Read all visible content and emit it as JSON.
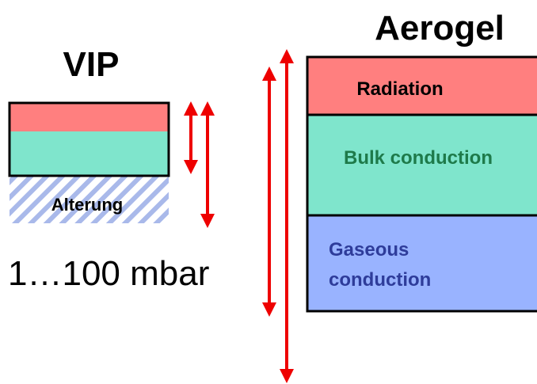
{
  "vip": {
    "title": "VIP",
    "label_below": "Alterung",
    "pressure": "1…100 mbar"
  },
  "aerogel": {
    "title": "Aerogel",
    "layers": [
      [
        "Radiation"
      ],
      [
        "Bulk conduction"
      ],
      [
        "Gaseous",
        "conduction"
      ]
    ]
  }
}
